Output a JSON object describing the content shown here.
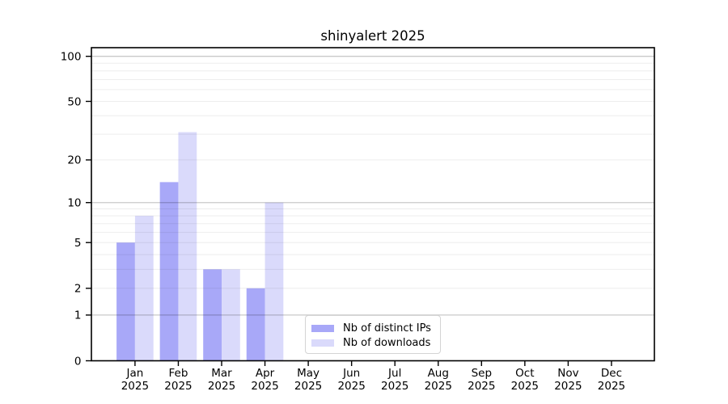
{
  "title": "shinyalert 2025",
  "chart_data": {
    "type": "bar",
    "title": "shinyalert 2025",
    "categories": [
      "Jan",
      "Feb",
      "Mar",
      "Apr",
      "May",
      "Jun",
      "Jul",
      "Aug",
      "Sep",
      "Oct",
      "Nov",
      "Dec"
    ],
    "category_year_sublabel": "2025",
    "series": [
      {
        "name": "Nb of distinct IPs",
        "color": "#a8a8f8",
        "values": [
          5,
          14,
          3,
          2,
          0,
          0,
          0,
          0,
          0,
          0,
          0,
          0
        ]
      },
      {
        "name": "Nb of downloads",
        "color": "#dadafb",
        "values": [
          8,
          31,
          3,
          10,
          0,
          0,
          0,
          0,
          0,
          0,
          0,
          0
        ]
      }
    ],
    "y_axis": {
      "scale": "log10(1+x)",
      "range": [
        0,
        100
      ],
      "tick_values": [
        0,
        1,
        2,
        5,
        10,
        20,
        50,
        100
      ],
      "tick_labels": [
        "0",
        "1",
        "2",
        "5",
        "10",
        "20",
        "50",
        "100"
      ],
      "minor_gridlines": [
        2,
        3,
        4,
        5,
        6,
        7,
        8,
        9,
        20,
        30,
        40,
        50,
        60,
        70,
        80,
        90
      ],
      "major_gridlines": [
        1,
        10,
        100
      ]
    },
    "grid": true,
    "legend_position": "inside-bottom-center",
    "legend_entries": [
      "Nb of distinct IPs",
      "Nb of downloads"
    ]
  },
  "colors": {
    "background": "#ffffff",
    "bar_distinct_ips": "#a8a8f8",
    "bar_downloads": "#dadafb",
    "axis": "#000000",
    "grid_minor": "#ededed",
    "grid_major": "#c9c9c9",
    "legend_border": "#d4d4d4",
    "text": "#000000"
  }
}
